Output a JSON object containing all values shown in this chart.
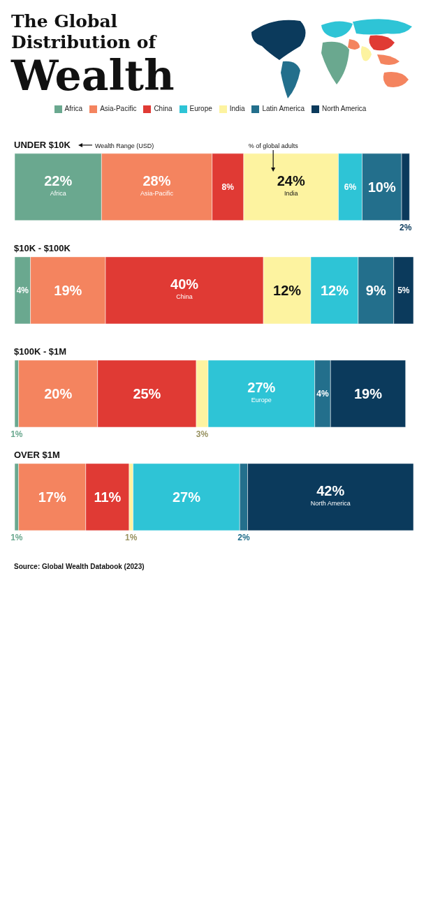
{
  "chart_data": {
    "type": "bar",
    "orientation": "horizontal",
    "stacked": true,
    "title": "The Global Distribution of Wealth",
    "categories": [
      "UNDER $10K",
      "$10K - $100K",
      "$100K - $1M",
      "OVER $1M"
    ],
    "series": [
      {
        "name": "Africa",
        "color": "#6aa88f",
        "values": [
          22,
          4,
          1,
          1
        ],
        "value_labels": [
          "22%\nAfrica",
          "4%",
          "1%",
          "1%"
        ]
      },
      {
        "name": "Asia-Pacific",
        "color": "#f4845f",
        "values": [
          28,
          19,
          20,
          17
        ],
        "value_labels": [
          "28%\nAsia-Pacific",
          "19%",
          "20%",
          "17%"
        ]
      },
      {
        "name": "China",
        "color": "#e03a34",
        "values": [
          8,
          40,
          25,
          11
        ],
        "value_labels": [
          "8%",
          "40%\nChina",
          "25%",
          "11%"
        ]
      },
      {
        "name": "India",
        "color": "#fdf3a0",
        "values": [
          24,
          12,
          3,
          1
        ],
        "value_labels": [
          "24%\nIndia",
          "12%",
          "3%",
          "1%"
        ]
      },
      {
        "name": "Europe",
        "color": "#2ec4d6",
        "values": [
          6,
          12,
          27,
          27
        ],
        "value_labels": [
          "6%",
          "12%",
          "27%\nEurope",
          "27%"
        ]
      },
      {
        "name": "Latin America",
        "color": "#236f8c",
        "values": [
          10,
          9,
          4,
          2
        ],
        "value_labels": [
          "10%",
          "9%",
          "4%",
          "2%"
        ]
      },
      {
        "name": "North America",
        "color": "#0b3a5c",
        "values": [
          2,
          5,
          19,
          42
        ],
        "value_labels": [
          "2%",
          "5%",
          "19%",
          "42%\nNorth America"
        ]
      }
    ],
    "legend": "top",
    "grid": false,
    "annotations": [
      "Wealth Range (USD)",
      "% of global adults",
      "Source: Global Wealth Databook (2023)"
    ]
  }
}
